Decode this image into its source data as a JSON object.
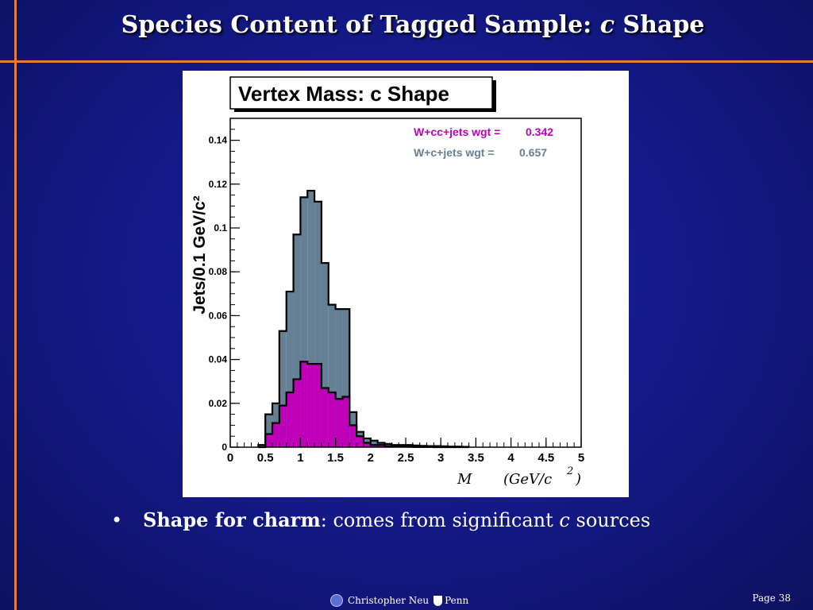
{
  "slide": {
    "title_prefix": "Species Content of Tagged Sample: ",
    "title_italic": "c",
    "title_suffix": " Shape",
    "bullet_marker": "•",
    "bullet_bold": "Shape for charm",
    "bullet_text": ": comes from significant ",
    "bullet_italic": "c",
    "bullet_tail": " sources",
    "footer_author": "Christopher Neu",
    "footer_logo": "Penn",
    "page_label": "Page 38"
  },
  "chart_data": {
    "type": "bar",
    "title": "Vertex Mass: c Shape",
    "ylabel": "Jets/0.1 GeV/c²",
    "xlabel_var": "M",
    "xlabel_unit": "(GeV/c",
    "xlabel_sup": "2",
    "xlabel_close": ")",
    "xlim": [
      0,
      5
    ],
    "ylim": [
      0,
      0.15
    ],
    "x_ticks": [
      "0",
      "0.5",
      "1",
      "1.5",
      "2",
      "2.5",
      "3",
      "3.5",
      "4",
      "4.5",
      "5"
    ],
    "y_ticks": [
      "0",
      "0.02",
      "0.04",
      "0.06",
      "0.08",
      "0.1",
      "0.12",
      "0.14"
    ],
    "bin_width": 0.1,
    "bin_edges_start": 0.4,
    "colors": {
      "total": "#657f95",
      "cc": "#c000b8",
      "grey_label": "#657f95",
      "cc_label": "#c000b8"
    },
    "series": [
      {
        "name": "W+c+jets",
        "legend_label": "W+c+jets wgt =",
        "legend_value": "0.657",
        "values": [
          0.001,
          0.015,
          0.02,
          0.053,
          0.071,
          0.097,
          0.114,
          0.117,
          0.112,
          0.084,
          0.065,
          0.063,
          0.063,
          0.016,
          0.007,
          0.004,
          0.003,
          0.002,
          0.0015,
          0.001,
          0.001,
          0.001,
          0.0008,
          0.0006,
          0.0005,
          0.0005,
          0.0004,
          0.0003,
          0.0003,
          0.0002
        ]
      },
      {
        "name": "W+cc+jets",
        "legend_label": "W+cc+jets wgt =",
        "legend_value": "0.342",
        "values": [
          0.0,
          0.006,
          0.011,
          0.019,
          0.025,
          0.031,
          0.039,
          0.038,
          0.038,
          0.027,
          0.025,
          0.022,
          0.023,
          0.01,
          0.005,
          0.002,
          0.001,
          0.001,
          0.0005,
          0.0003,
          0.0002,
          0.0002,
          0.0001,
          0.0001,
          0.0001,
          0.0,
          0.0,
          0.0,
          0.0,
          0.0
        ]
      }
    ]
  }
}
